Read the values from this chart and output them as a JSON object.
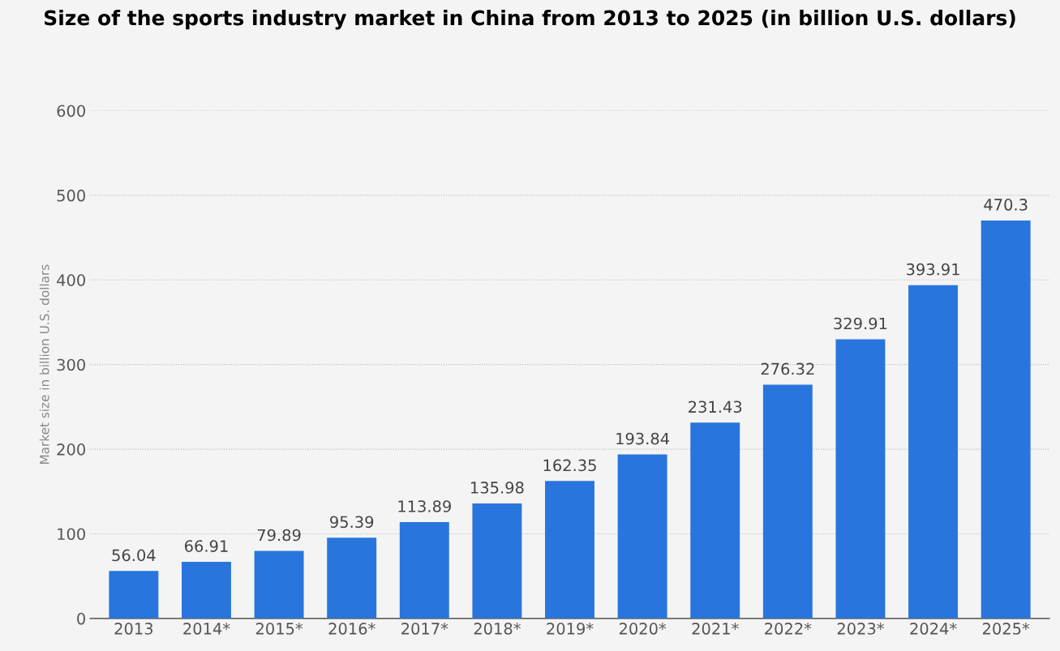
{
  "chart_data": {
    "type": "bar",
    "title": "Size of the sports industry market in China from 2013 to 2025 (in billion U.S. dollars)",
    "ylabel": "Market size in billion U.S. dollars",
    "categories": [
      "2013",
      "2014*",
      "2015*",
      "2016*",
      "2017*",
      "2018*",
      "2019*",
      "2020*",
      "2021*",
      "2022*",
      "2023*",
      "2024*",
      "2025*"
    ],
    "values": [
      56.04,
      66.91,
      79.89,
      95.39,
      113.89,
      135.98,
      162.35,
      193.84,
      231.43,
      276.32,
      329.91,
      393.91,
      470.3
    ],
    "color": "#2876dd",
    "ylim": [
      0,
      600
    ],
    "yticks": [
      0,
      100,
      200,
      300,
      400,
      500,
      600
    ],
    "grid": "y",
    "data_labels": true
  }
}
